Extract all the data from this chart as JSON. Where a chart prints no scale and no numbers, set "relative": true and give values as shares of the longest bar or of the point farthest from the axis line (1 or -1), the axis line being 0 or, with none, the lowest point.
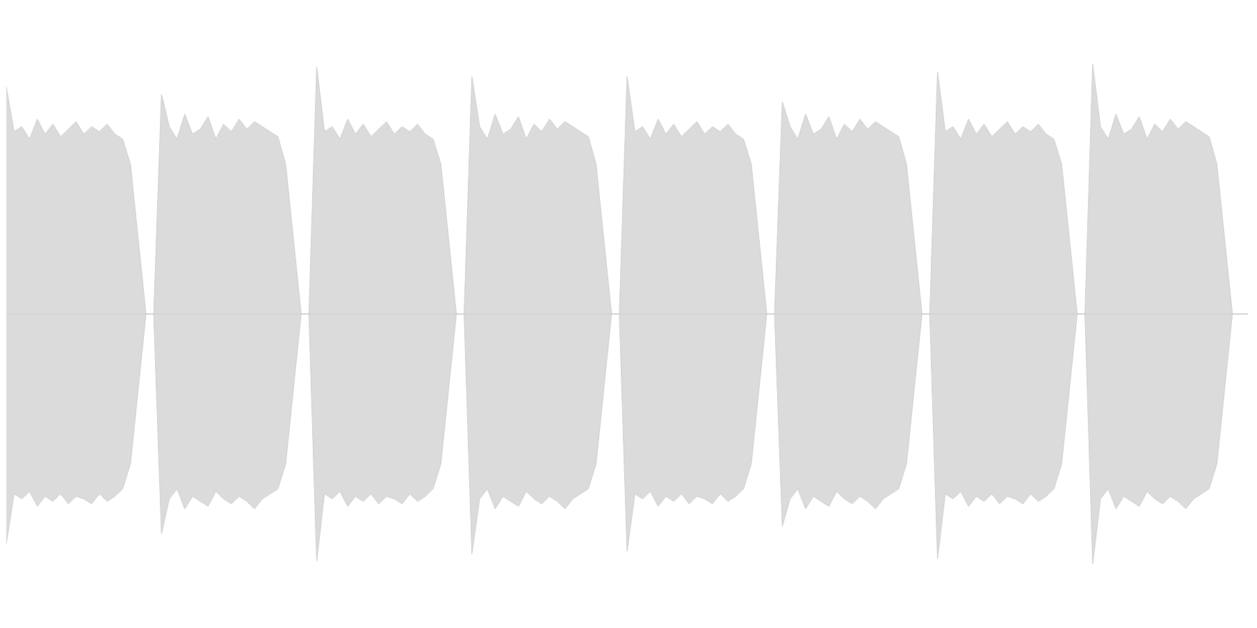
{
  "chart_data": {
    "type": "area",
    "relative": true,
    "categories": [
      null,
      null,
      null,
      null,
      null,
      null,
      null,
      null,
      null,
      null,
      null,
      null,
      null,
      null,
      null,
      null,
      null,
      null,
      null,
      null,
      null,
      null,
      null,
      null,
      null,
      null,
      null,
      null,
      null,
      null,
      null,
      null,
      null,
      null,
      null,
      null,
      null,
      null,
      null,
      null,
      null,
      null,
      null,
      null,
      null,
      null,
      null,
      null,
      null,
      null,
      null,
      null,
      null,
      null,
      null,
      null,
      null,
      null,
      null,
      null,
      null,
      null,
      null,
      null,
      null,
      null,
      null,
      null,
      null,
      null,
      null,
      null,
      null,
      null,
      null,
      null,
      null,
      null,
      null,
      null,
      null,
      null,
      null,
      null,
      null,
      null,
      null,
      null,
      null,
      null,
      null,
      null,
      null,
      null,
      null,
      null,
      null,
      null,
      null,
      null,
      null,
      null,
      null,
      null,
      null,
      null,
      null,
      null,
      null,
      null,
      null,
      null,
      null,
      null,
      null,
      null,
      null,
      null,
      null,
      null,
      null,
      null,
      null,
      null,
      null,
      null,
      null,
      null,
      null,
      null,
      null,
      null,
      null,
      null,
      null,
      null,
      null,
      null,
      null,
      null,
      null,
      null,
      null,
      null,
      null,
      null,
      null,
      null,
      null,
      null,
      null,
      null,
      null,
      null,
      null,
      null,
      null,
      null,
      null,
      null,
      null
    ],
    "series": [
      {
        "color": "#cccccc",
        "values": [
          0.91,
          0.73,
          0.75,
          0.7,
          0.78,
          0.72,
          0.76,
          0.71,
          0.74,
          0.77,
          0.72,
          0.75,
          0.73,
          0.76,
          0.72,
          0.7,
          0.6,
          0.3,
          0,
          0,
          0.88,
          0.75,
          0.7,
          0.8,
          0.72,
          0.74,
          0.79,
          0.7,
          0.76,
          0.73,
          0.78,
          0.74,
          0.77,
          0.75,
          0.73,
          0.71,
          0.6,
          0.3,
          0,
          0,
          0.99,
          0.73,
          0.75,
          0.7,
          0.78,
          0.72,
          0.76,
          0.71,
          0.74,
          0.77,
          0.72,
          0.75,
          0.73,
          0.76,
          0.72,
          0.7,
          0.6,
          0.3,
          0,
          0,
          0.95,
          0.75,
          0.7,
          0.8,
          0.72,
          0.74,
          0.79,
          0.7,
          0.76,
          0.73,
          0.78,
          0.74,
          0.77,
          0.75,
          0.73,
          0.71,
          0.6,
          0.3,
          0,
          0,
          0.95,
          0.73,
          0.75,
          0.7,
          0.78,
          0.72,
          0.76,
          0.71,
          0.74,
          0.77,
          0.72,
          0.75,
          0.73,
          0.76,
          0.72,
          0.7,
          0.6,
          0.3,
          0,
          0,
          0.85,
          0.75,
          0.7,
          0.8,
          0.72,
          0.74,
          0.79,
          0.7,
          0.76,
          0.73,
          0.78,
          0.74,
          0.77,
          0.75,
          0.73,
          0.71,
          0.6,
          0.3,
          0,
          0,
          0.97,
          0.73,
          0.75,
          0.7,
          0.78,
          0.72,
          0.76,
          0.71,
          0.74,
          0.77,
          0.72,
          0.75,
          0.73,
          0.76,
          0.72,
          0.7,
          0.6,
          0.3,
          0,
          0,
          1,
          0.75,
          0.7,
          0.8,
          0.72,
          0.74,
          0.79,
          0.7,
          0.76,
          0.73,
          0.78,
          0.74,
          0.77,
          0.75,
          0.73,
          0.71,
          0.6,
          0.3,
          0,
          0,
          0
        ]
      },
      {
        "color": "#cccccc",
        "values": [
          -0.92,
          -0.72,
          -0.74,
          -0.71,
          -0.77,
          -0.73,
          -0.75,
          -0.72,
          -0.76,
          -0.73,
          -0.74,
          -0.76,
          -0.72,
          -0.75,
          -0.73,
          -0.7,
          -0.6,
          -0.3,
          0,
          0,
          -0.88,
          -0.74,
          -0.7,
          -0.78,
          -0.73,
          -0.75,
          -0.77,
          -0.71,
          -0.74,
          -0.76,
          -0.73,
          -0.75,
          -0.78,
          -0.74,
          -0.72,
          -0.7,
          -0.6,
          -0.3,
          0,
          0,
          -0.99,
          -0.72,
          -0.74,
          -0.71,
          -0.77,
          -0.73,
          -0.75,
          -0.72,
          -0.76,
          -0.73,
          -0.74,
          -0.76,
          -0.72,
          -0.75,
          -0.73,
          -0.7,
          -0.6,
          -0.3,
          0,
          0,
          -0.96,
          -0.74,
          -0.7,
          -0.78,
          -0.73,
          -0.75,
          -0.77,
          -0.71,
          -0.74,
          -0.76,
          -0.73,
          -0.75,
          -0.78,
          -0.74,
          -0.72,
          -0.7,
          -0.6,
          -0.3,
          0,
          0,
          -0.95,
          -0.72,
          -0.74,
          -0.71,
          -0.77,
          -0.73,
          -0.75,
          -0.72,
          -0.76,
          -0.73,
          -0.74,
          -0.76,
          -0.72,
          -0.75,
          -0.73,
          -0.7,
          -0.6,
          -0.3,
          0,
          0,
          -0.85,
          -0.74,
          -0.7,
          -0.78,
          -0.73,
          -0.75,
          -0.77,
          -0.71,
          -0.74,
          -0.76,
          -0.73,
          -0.75,
          -0.78,
          -0.74,
          -0.72,
          -0.7,
          -0.6,
          -0.3,
          0,
          0,
          -0.98,
          -0.72,
          -0.74,
          -0.71,
          -0.77,
          -0.73,
          -0.75,
          -0.72,
          -0.76,
          -0.73,
          -0.74,
          -0.76,
          -0.72,
          -0.75,
          -0.73,
          -0.7,
          -0.6,
          -0.3,
          0,
          0,
          -1,
          -0.74,
          -0.7,
          -0.78,
          -0.73,
          -0.75,
          -0.77,
          -0.71,
          -0.74,
          -0.76,
          -0.73,
          -0.75,
          -0.78,
          -0.74,
          -0.72,
          -0.7,
          -0.6,
          -0.3,
          0,
          0,
          0
        ]
      }
    ]
  }
}
